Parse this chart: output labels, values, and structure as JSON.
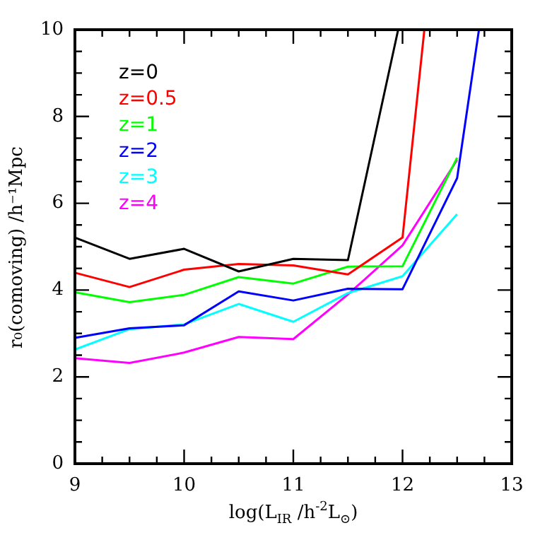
{
  "chart_data": {
    "type": "line",
    "xlabel": "log(L$_{IR}$ /h$^{-2}$L$_{⊙}$)",
    "ylabel": "r₀(comoving) /h⁻¹Mpc",
    "x": [
      9,
      9.5,
      10,
      10.5,
      11,
      11.5,
      12,
      12.5
    ],
    "xlim": [
      9,
      13
    ],
    "ylim": [
      0,
      10
    ],
    "xticks": [
      9,
      {
        "value": 9.25,
        "label": null
      },
      {
        "value": 9.5,
        "label": null
      },
      {
        "value": 9.75,
        "label": null
      },
      10,
      {
        "value": 10.25,
        "label": null
      },
      {
        "value": 10.5,
        "label": null
      },
      {
        "value": 10.75,
        "label": null
      },
      11,
      {
        "value": 11.25,
        "label": null
      },
      {
        "value": 11.5,
        "label": null
      },
      {
        "value": 11.75,
        "label": null
      },
      12,
      {
        "value": 12.25,
        "label": null
      },
      {
        "value": 12.5,
        "label": null
      },
      {
        "value": 12.75,
        "label": null
      },
      13
    ],
    "yticks": [
      0,
      {
        "value": 0.5,
        "label": null
      },
      {
        "value": 1,
        "label": null
      },
      {
        "value": 1.5,
        "label": null
      },
      2,
      {
        "value": 2.5,
        "label": null
      },
      {
        "value": 3,
        "label": null
      },
      {
        "value": 3.5,
        "label": null
      },
      4,
      {
        "value": 4.5,
        "label": null
      },
      {
        "value": 5,
        "label": null
      },
      {
        "value": 5.5,
        "label": null
      },
      6,
      {
        "value": 6.5,
        "label": null
      },
      {
        "value": 7,
        "label": null
      },
      {
        "value": 7.5,
        "label": null
      },
      8,
      {
        "value": 8.5,
        "label": null
      },
      {
        "value": 9,
        "label": null
      },
      {
        "value": 9.5,
        "label": null
      },
      10
    ],
    "grid": false,
    "legend": "top left",
    "marker": "none",
    "line_style": "solid",
    "series": [
      {
        "name": "z=0",
        "color": "#000000",
        "x": [
          9,
          9.5,
          10,
          10.5,
          11,
          11.5,
          11.96
        ],
        "values": [
          5.21,
          4.72,
          4.95,
          4.43,
          4.72,
          4.69,
          10
        ]
      },
      {
        "name": "z=0.5",
        "color": "#ff0000",
        "x": [
          9,
          9.5,
          10,
          10.5,
          11,
          11.5,
          12,
          12.2
        ],
        "values": [
          4.4,
          4.07,
          4.47,
          4.6,
          4.57,
          4.36,
          5.21,
          10
        ]
      },
      {
        "name": "z=1",
        "color": "#00ff00",
        "values": [
          3.95,
          3.72,
          3.89,
          4.3,
          4.15,
          4.54,
          4.55,
          7.05
        ]
      },
      {
        "name": "z=2",
        "color": "#0000ff",
        "x": [
          9,
          9.5,
          10,
          10.5,
          11,
          11.5,
          12,
          12.5,
          12.7
        ],
        "values": [
          2.9,
          3.12,
          3.19,
          3.97,
          3.76,
          4.03,
          4.02,
          6.58,
          10
        ]
      },
      {
        "name": "z=3",
        "color": "#00ffff",
        "values": [
          2.63,
          3.1,
          3.21,
          3.68,
          3.27,
          3.93,
          4.32,
          5.75
        ]
      },
      {
        "name": "z=4",
        "color": "#ff00ff",
        "values": [
          2.43,
          2.32,
          2.56,
          2.92,
          2.87,
          3.9,
          5.03,
          7.0
        ]
      }
    ]
  }
}
